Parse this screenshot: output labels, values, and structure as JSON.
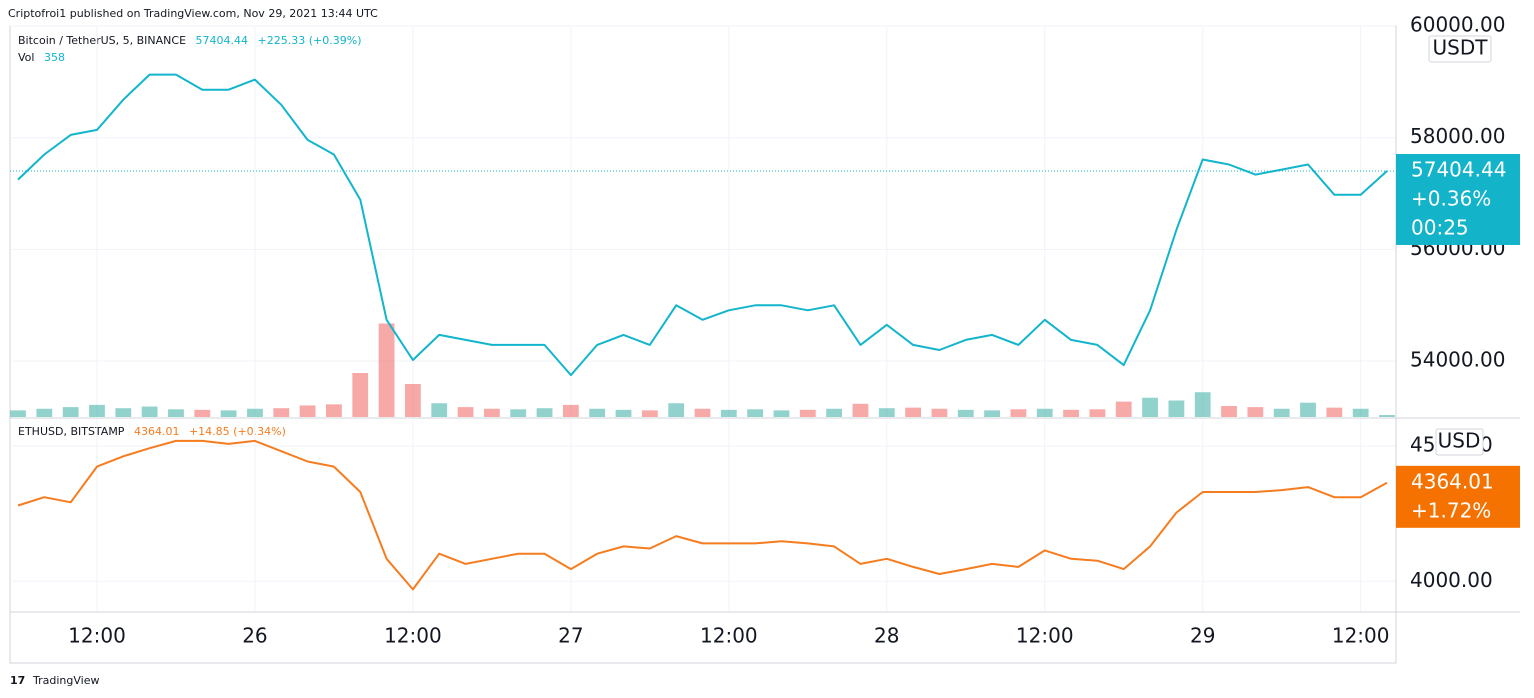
{
  "header": {
    "publisher": "Criptofroi1 published on TradingView.com, Nov 29, 2021 13:44 UTC"
  },
  "chart_data": [
    {
      "type": "line",
      "title": "Bitcoin / TetherUS, 5, BINANCE",
      "last_price": 57404.44,
      "change": "+225.33 (+0.39%)",
      "change_pct": "+0.36%",
      "countdown": "00:25",
      "currency": "USDT",
      "color": "#12b5cb",
      "ylim": [
        53000,
        60000
      ],
      "yticks": [
        {
          "value": 54000,
          "label": "54000.00"
        },
        {
          "value": 56000,
          "label": "56000.00"
        },
        {
          "value": 58000,
          "label": "58000.00"
        },
        {
          "value": 60000,
          "label": "60000.00"
        }
      ],
      "grid": true,
      "series": [
        {
          "name": "Bitcoin / TetherUS",
          "color": "#12b5cb",
          "values": [
            57250,
            57700,
            58050,
            58140,
            58680,
            59130,
            59130,
            58860,
            58860,
            59040,
            58590,
            57960,
            57700,
            56890,
            54740,
            54020,
            54470,
            54380,
            54290,
            54290,
            54290,
            53750,
            54290,
            54470,
            54290,
            55000,
            54740,
            54910,
            55000,
            55000,
            54910,
            55000,
            54290,
            54650,
            54290,
            54200,
            54380,
            54470,
            54290,
            54740,
            54380,
            54290,
            53930,
            54910,
            56350,
            57610,
            57520,
            57340,
            57430,
            57520,
            56980,
            56980,
            57404.44
          ]
        }
      ],
      "volume": {
        "name": "Vol",
        "ylim": [
          0,
          20000
        ],
        "values": [
          1200,
          1500,
          1800,
          2200,
          1600,
          1900,
          1400,
          1300,
          1200,
          1500,
          1600,
          2100,
          2300,
          8000,
          17000,
          6000,
          2500,
          1800,
          1500,
          1400,
          1600,
          2200,
          1500,
          1300,
          1200,
          2500,
          1500,
          1300,
          1400,
          1200,
          1300,
          1500,
          2400,
          1600,
          1700,
          1500,
          1300,
          1200,
          1400,
          1500,
          1300,
          1400,
          2800,
          3500,
          3000,
          4500,
          2000,
          1800,
          1500,
          2600,
          1700,
          1500,
          358
        ],
        "colors": [
          "#26a69a",
          "#26a69a",
          "#26a69a",
          "#26a69a",
          "#26a69a",
          "#26a69a",
          "#26a69a",
          "#ef5350",
          "#26a69a",
          "#26a69a",
          "#ef5350",
          "#ef5350",
          "#ef5350",
          "#ef5350",
          "#ef5350",
          "#ef5350",
          "#26a69a",
          "#ef5350",
          "#ef5350",
          "#26a69a",
          "#26a69a",
          "#ef5350",
          "#26a69a",
          "#26a69a",
          "#ef5350",
          "#26a69a",
          "#ef5350",
          "#26a69a",
          "#26a69a",
          "#26a69a",
          "#ef5350",
          "#26a69a",
          "#ef5350",
          "#26a69a",
          "#ef5350",
          "#ef5350",
          "#26a69a",
          "#26a69a",
          "#ef5350",
          "#26a69a",
          "#ef5350",
          "#ef5350",
          "#ef5350",
          "#26a69a",
          "#26a69a",
          "#26a69a",
          "#ef5350",
          "#ef5350",
          "#26a69a",
          "#26a69a",
          "#ef5350",
          "#26a69a",
          "#26a69a"
        ]
      }
    },
    {
      "type": "line",
      "title": "ETHUSD, BITSTAMP",
      "last_price": 4364.01,
      "change": "+14.85 (+0.34%)",
      "change_pct": "+1.72%",
      "currency": "USD",
      "color": "#f57c1f",
      "ylim": [
        3890,
        4600
      ],
      "yticks": [
        {
          "value": 4000,
          "label": "4000.00"
        },
        {
          "value": 4500,
          "label": "4500.00"
        }
      ],
      "grid": true,
      "categories": [
        null,
        null,
        null,
        "12:00",
        null,
        null,
        null,
        null,
        null,
        "26",
        null,
        null,
        null,
        null,
        null,
        "12:00",
        null,
        null,
        null,
        null,
        null,
        "27",
        null,
        null,
        null,
        null,
        null,
        "12:00",
        null,
        null,
        null,
        null,
        null,
        "28",
        null,
        null,
        null,
        null,
        null,
        "12:00",
        null,
        null,
        null,
        null,
        null,
        "29",
        null,
        null,
        null,
        null,
        null,
        "12:00",
        null
      ],
      "series": [
        {
          "name": "ETHUSD",
          "color": "#f57c1f",
          "values": [
            4280,
            4311,
            4292,
            4424,
            4462,
            4492,
            4519,
            4519,
            4508,
            4519,
            4481,
            4443,
            4424,
            4330,
            4083,
            3970,
            4102,
            4064,
            4083,
            4102,
            4102,
            4045,
            4102,
            4129,
            4121,
            4167,
            4140,
            4140,
            4140,
            4148,
            4140,
            4129,
            4064,
            4083,
            4053,
            4027,
            4045,
            4064,
            4053,
            4114,
            4083,
            4076,
            4045,
            4129,
            4254,
            4330,
            4330,
            4330,
            4337,
            4348,
            4311,
            4311,
            4364.01
          ]
        }
      ]
    }
  ],
  "footer": {
    "brand": "TradingView"
  }
}
